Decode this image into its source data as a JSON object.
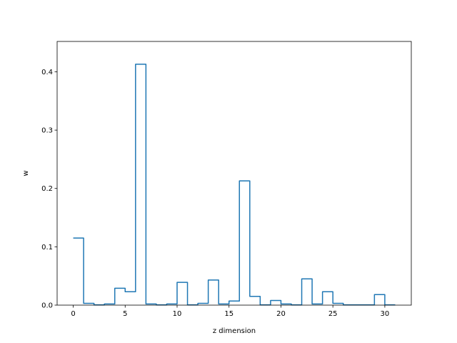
{
  "chart_data": {
    "type": "step",
    "xlabel": "z dimension",
    "ylabel": "w",
    "xlim": [
      -1.55,
      32.55
    ],
    "ylim": [
      0,
      0.452
    ],
    "xticks": [
      0,
      5,
      10,
      15,
      20,
      25,
      30
    ],
    "yticks": [
      0.0,
      0.1,
      0.2,
      0.3,
      0.4
    ],
    "xtick_labels": [
      "0",
      "5",
      "10",
      "15",
      "20",
      "25",
      "30"
    ],
    "ytick_labels": [
      "0.0",
      "0.1",
      "0.2",
      "0.3",
      "0.4"
    ],
    "grid": false,
    "legend": null,
    "series": [
      {
        "color": "#1f77b4",
        "x": [
          0,
          1,
          2,
          3,
          4,
          5,
          6,
          7,
          8,
          9,
          10,
          11,
          12,
          13,
          14,
          15,
          16,
          17,
          18,
          19,
          20,
          21,
          22,
          23,
          24,
          25,
          26,
          27,
          28,
          29,
          30,
          31
        ],
        "values": [
          0.115,
          0.003,
          0.0005,
          0.002,
          0.029,
          0.023,
          0.413,
          0.002,
          0.0005,
          0.002,
          0.039,
          0.0005,
          0.003,
          0.043,
          0.002,
          0.007,
          0.213,
          0.015,
          0.0005,
          0.008,
          0.002,
          0.0005,
          0.045,
          0.002,
          0.023,
          0.003,
          0.0005,
          0.0005,
          0.0005,
          0.018,
          0.0005,
          0.0005
        ]
      }
    ]
  }
}
